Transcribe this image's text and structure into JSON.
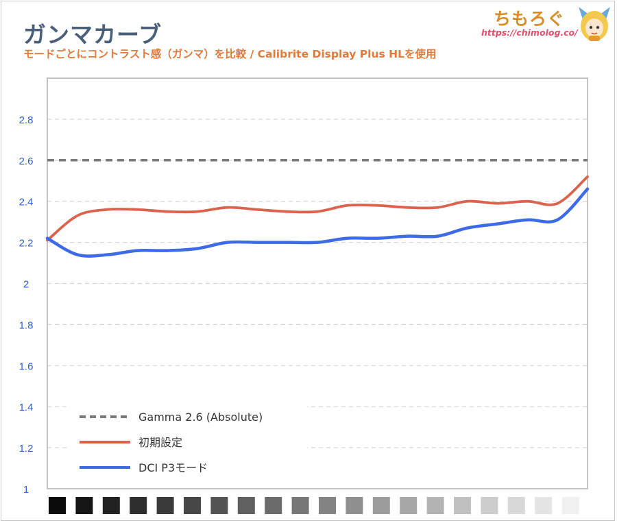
{
  "header": {
    "title": "ガンマカーブ",
    "subtitle": "モードごとにコントラスト感（ガンマ）を比較 / Calibrite Display Plus HLを使用"
  },
  "logo": {
    "text": "ちもろぐ",
    "url": "https://chimolog.co/"
  },
  "colors": {
    "reference": "#7a7a7a",
    "initial": "#d9634d",
    "dci": "#3d6be8",
    "tick": "#2f5fd6"
  },
  "chart_data": {
    "type": "line",
    "title": "ガンマカーブ",
    "xlabel": "",
    "ylabel": "",
    "ylim": [
      1,
      3
    ],
    "y_ticks": [
      "1",
      "1.2",
      "1.4",
      "1.6",
      "1.8",
      "2",
      "2.2",
      "2.4",
      "2.6",
      "2.8"
    ],
    "y_tick_values": [
      1,
      1.2,
      1.4,
      1.6,
      1.8,
      2,
      2.2,
      2.4,
      2.6,
      2.8
    ],
    "grid": true,
    "legend_placement": "bottom-left",
    "x_swatch_count": 20,
    "series": [
      {
        "name": "Gamma 2.6 (Absolute)",
        "style": "dashed",
        "values": [
          2.6,
          2.6,
          2.6,
          2.6,
          2.6,
          2.6,
          2.6,
          2.6,
          2.6,
          2.6,
          2.6,
          2.6,
          2.6,
          2.6,
          2.6,
          2.6,
          2.6,
          2.6,
          2.6,
          2.6,
          2.6
        ]
      },
      {
        "name": "初期設定",
        "style": "solid",
        "values": [
          2.21,
          2.33,
          2.36,
          2.36,
          2.35,
          2.35,
          2.37,
          2.36,
          2.35,
          2.35,
          2.38,
          2.38,
          2.37,
          2.37,
          2.4,
          2.39,
          2.4,
          2.39,
          2.52
        ]
      },
      {
        "name": "DCI P3モード",
        "style": "solid",
        "values": [
          2.22,
          2.14,
          2.14,
          2.16,
          2.16,
          2.17,
          2.2,
          2.2,
          2.2,
          2.2,
          2.22,
          2.22,
          2.23,
          2.23,
          2.27,
          2.29,
          2.31,
          2.31,
          2.46
        ]
      }
    ]
  }
}
